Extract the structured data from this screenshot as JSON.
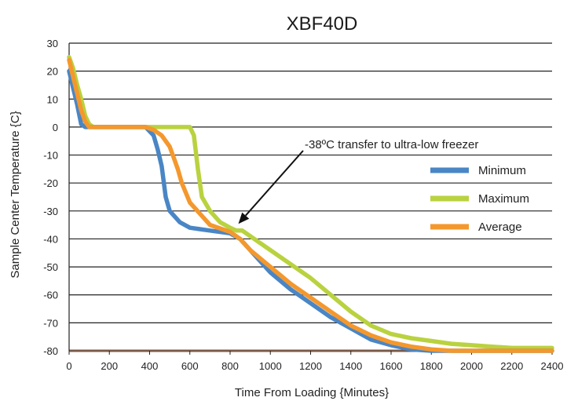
{
  "chart_data": {
    "type": "line",
    "title": "XBF40D",
    "xlabel": "Time From Loading {Minutes}",
    "ylabel": "Sample Center Temperature {C}",
    "xlim": [
      0,
      2400
    ],
    "ylim": [
      -80,
      30
    ],
    "xticks": [
      0,
      200,
      400,
      600,
      800,
      1000,
      1200,
      1400,
      1600,
      1800,
      2000,
      2200,
      2400
    ],
    "yticks": [
      30,
      20,
      10,
      0,
      -10,
      -20,
      -30,
      -40,
      -50,
      -60,
      -70,
      -80
    ],
    "grid": "horizontal",
    "legend_position": "right",
    "annotation": {
      "text": "-38ºC transfer to ultra-low freezer",
      "x": 880,
      "y": -36
    },
    "series": [
      {
        "name": "Minimum",
        "color": "#4a86c5",
        "x": [
          0,
          20,
          40,
          60,
          80,
          100,
          150,
          200,
          300,
          380,
          420,
          440,
          460,
          480,
          500,
          550,
          600,
          700,
          800,
          850,
          900,
          1000,
          1100,
          1200,
          1300,
          1400,
          1500,
          1600,
          1700,
          1800,
          1900,
          2000,
          2100,
          2200,
          2300,
          2400
        ],
        "y": [
          20,
          14,
          8,
          1,
          0,
          0,
          0,
          0,
          0,
          0,
          -3,
          -8,
          -14,
          -25,
          -30,
          -34,
          -36,
          -37,
          -38,
          -40,
          -44,
          -52,
          -58,
          -63,
          -68,
          -72,
          -76,
          -78,
          -79.5,
          -80,
          -80,
          -80,
          -80,
          -80,
          -80,
          -80
        ]
      },
      {
        "name": "Maximum",
        "color": "#b9d23f",
        "x": [
          0,
          20,
          40,
          60,
          80,
          100,
          120,
          200,
          300,
          400,
          500,
          600,
          620,
          640,
          660,
          700,
          750,
          800,
          830,
          860,
          900,
          1000,
          1100,
          1200,
          1300,
          1400,
          1500,
          1600,
          1700,
          1800,
          1900,
          2000,
          2100,
          2200,
          2300,
          2400
        ],
        "y": [
          25,
          21,
          15,
          10,
          4,
          1,
          0,
          0,
          0,
          0,
          0,
          0,
          -3,
          -15,
          -25,
          -30,
          -34,
          -36,
          -37,
          -37,
          -39,
          -44,
          -49,
          -54,
          -60,
          -66,
          -71,
          -74,
          -75.5,
          -76.5,
          -77.5,
          -78,
          -78.5,
          -79,
          -79,
          -79
        ]
      },
      {
        "name": "Average",
        "color": "#f4982d",
        "x": [
          0,
          20,
          40,
          60,
          80,
          100,
          150,
          200,
          300,
          380,
          420,
          460,
          500,
          520,
          540,
          560,
          600,
          700,
          800,
          850,
          900,
          1000,
          1100,
          1200,
          1300,
          1400,
          1500,
          1600,
          1700,
          1800,
          1900,
          2000,
          2100,
          2200,
          2300,
          2400
        ],
        "y": [
          24,
          18,
          12,
          6,
          2,
          0,
          0,
          0,
          0,
          0,
          -1,
          -3,
          -7,
          -11,
          -15,
          -20,
          -27,
          -35,
          -37.5,
          -40,
          -44,
          -50,
          -56,
          -61,
          -66,
          -71,
          -74.5,
          -77,
          -78.5,
          -79.5,
          -80,
          -80,
          -80,
          -80,
          -80,
          -80
        ]
      }
    ]
  }
}
